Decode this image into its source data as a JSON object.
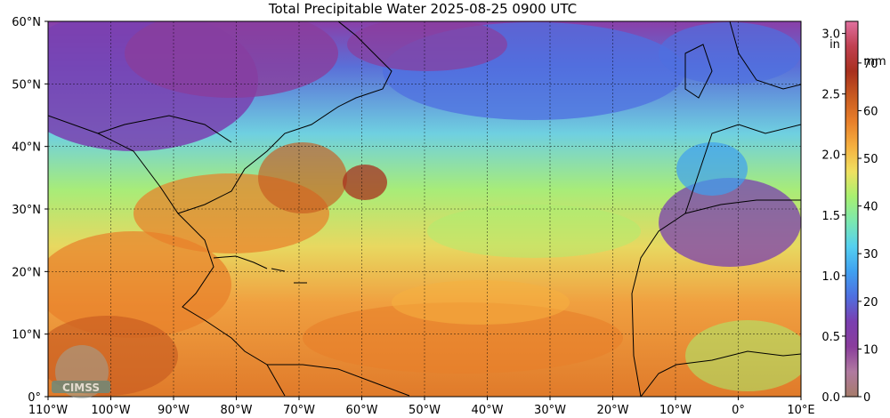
{
  "title": "Total Precipitable Water  2025-08-25 0900 UTC",
  "map": {
    "lon_range": [
      -110,
      10
    ],
    "lat_range": [
      0,
      60
    ],
    "lat_labels": [
      "0°",
      "10°N",
      "20°N",
      "30°N",
      "40°N",
      "50°N",
      "60°N"
    ],
    "lon_labels": [
      "110°W",
      "100°W",
      "90°W",
      "80°W",
      "70°W",
      "60°W",
      "50°W",
      "40°W",
      "30°W",
      "20°W",
      "10°W",
      "0°",
      "10°E"
    ],
    "grid": true,
    "logo_text": "CIMSS"
  },
  "colorbar": {
    "inch_unit_line1": "in",
    "inch_labels": [
      "0.0",
      "0.5",
      "1.0",
      "1.5",
      "2.0",
      "2.5",
      "3.0"
    ],
    "inch_values": [
      0,
      0.5,
      1.0,
      1.5,
      2.0,
      2.5,
      3.0
    ],
    "mm_unit": "mm",
    "mm_labels": [
      "0",
      "10",
      "20",
      "30",
      "40",
      "50",
      "60",
      "70"
    ],
    "mm_values": [
      0,
      10,
      20,
      30,
      40,
      50,
      60,
      70
    ],
    "max_in": 3.1,
    "colors": [
      "#a67b6a",
      "#b07aa0",
      "#8a3d9c",
      "#7a3fb0",
      "#4f6fe0",
      "#3fa0f0",
      "#55d0f0",
      "#7be8b0",
      "#a8f070",
      "#f0e060",
      "#f5b040",
      "#e87f2a",
      "#c85a20",
      "#a8301e",
      "#c04050",
      "#e070a0"
    ]
  }
}
